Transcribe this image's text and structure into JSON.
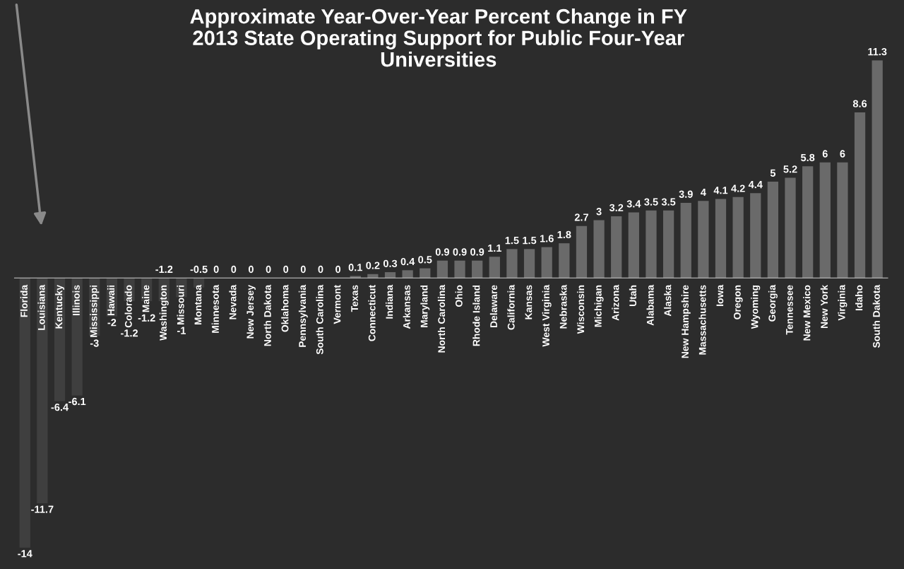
{
  "chart_data": {
    "type": "bar",
    "title": "Approximate Year-Over-Year Percent Change in FY\n2013 State Operating Support for Public Four-Year\nUniversities",
    "categories": [
      "Florida",
      "Louisiana",
      "Kentucky",
      "Illinois",
      "Mississippi",
      "Hawaii",
      "Colorado",
      "Maine",
      "Washington",
      "Missouri",
      "Montana",
      "Minnesota",
      "Nevada",
      "New Jersey",
      "North Dakota",
      "Oklahoma",
      "Pennsylvania",
      "South Carolina",
      "Vermont",
      "Texas",
      "Connecticut",
      "Indiana",
      "Arkansas",
      "Maryland",
      "North Carolina",
      "Ohio",
      "Rhode Island",
      "Delaware",
      "California",
      "Kansas",
      "West Virginia",
      "Nebraska",
      "Wisconsin",
      "Michigan",
      "Arizona",
      "Utah",
      "Alabama",
      "Alaska",
      "New Hampshire",
      "Massachusetts",
      "Iowa",
      "Oregon",
      "Wyoming",
      "Georgia",
      "Tennessee",
      "New Mexico",
      "New York",
      "Virginia",
      "Idaho",
      "South Dakota"
    ],
    "values": [
      -14,
      -11.7,
      -6.4,
      -6.1,
      -3,
      -2,
      -1.2,
      -1.2,
      -1.2,
      -1,
      -0.5,
      0,
      0,
      0,
      0,
      0,
      0,
      0,
      0,
      0.1,
      0.2,
      0.3,
      0.4,
      0.5,
      0.9,
      0.9,
      0.9,
      1.1,
      1.5,
      1.5,
      1.6,
      1.8,
      2.7,
      3,
      3.2,
      3.4,
      3.5,
      3.5,
      3.9,
      4,
      4.1,
      4.2,
      4.4,
      5,
      5.2,
      5.8,
      6,
      6,
      8.6,
      11.3
    ],
    "colors": [
      "#3f3f3f",
      "#3f3f3f",
      "#3f3f3f",
      "#3f3f3f",
      "#3f3f3f",
      "#3f3f3f",
      "#3f3f3f",
      "#3f3f3f",
      "#3f3f3f",
      "#3f3f3f",
      "#3f3f3f",
      "#6a6a6a",
      "#6a6a6a",
      "#6a6a6a",
      "#6a6a6a",
      "#6a6a6a",
      "#6a6a6a",
      "#6a6a6a",
      "#6a6a6a",
      "#6a6a6a",
      "#6a6a6a",
      "#6a6a6a",
      "#6a6a6a",
      "#6a6a6a",
      "#6a6a6a",
      "#6a6a6a",
      "#6a6a6a",
      "#6a6a6a",
      "#6a6a6a",
      "#6a6a6a",
      "#6a6a6a",
      "#6a6a6a",
      "#6a6a6a",
      "#6a6a6a",
      "#6a6a6a",
      "#6a6a6a",
      "#6a6a6a",
      "#6a6a6a",
      "#6a6a6a",
      "#6a6a6a",
      "#6a6a6a",
      "#6a6a6a",
      "#6a6a6a",
      "#6a6a6a",
      "#6a6a6a",
      "#6a6a6a",
      "#6a6a6a",
      "#6a6a6a",
      "#6a6a6a",
      "#6a6a6a"
    ],
    "data_labels": true,
    "grid": false,
    "legend": false
  }
}
